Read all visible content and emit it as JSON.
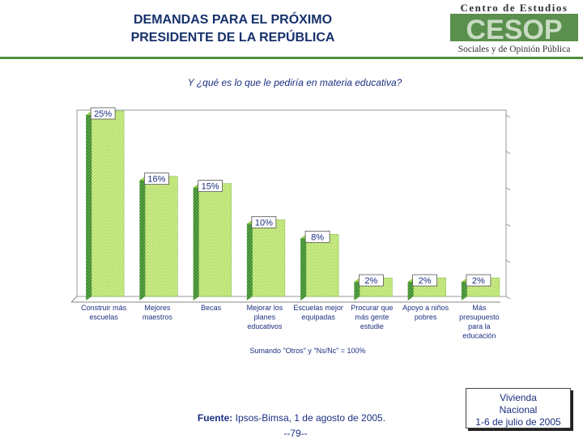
{
  "header": {
    "title_line1": "DEMANDAS PARA EL PRÓXIMO",
    "title_line2": "PRESIDENTE DE LA REPÚBLICA",
    "logo_line1": "Centro de Estudios",
    "logo_word": "CESOP",
    "logo_line2": "Sociales y de Opinión Pública"
  },
  "chart_data": {
    "type": "bar",
    "title": "Y ¿qué es lo que le pediría en materia educativa?",
    "categories": [
      [
        "Construir más",
        "escuelas"
      ],
      [
        "Mejores",
        "maestros"
      ],
      [
        "Becas"
      ],
      [
        "Mejorar los",
        "planes",
        "educativos"
      ],
      [
        "Escuelas mejor",
        "equipadas"
      ],
      [
        "Procurar que",
        "más gente",
        "estudie"
      ],
      [
        "Apoyo a niños",
        "pobres"
      ],
      [
        "Más",
        "presupuesto",
        "para la",
        "educación"
      ]
    ],
    "values": [
      25,
      16,
      15,
      10,
      8,
      2,
      2,
      2
    ],
    "value_labels": [
      "25%",
      "16%",
      "15%",
      "10%",
      "8%",
      "2%",
      "2%",
      "2%"
    ],
    "ylim": [
      0,
      25
    ],
    "xlabel": "",
    "ylabel": "",
    "bar_color": "#b6e06a",
    "bar_side_color": "#3c8a2e"
  },
  "footer": {
    "note": "Sumando \"Otros\" y \"Ns/Nc\" = 100%",
    "source_label": "Fuente:",
    "source_text": "Ipsos-Bimsa, 1 de agosto de 2005.",
    "page_number": "--79--",
    "survey_line1": "Vivienda",
    "survey_line2": "Nacional",
    "survey_line3": "1-6 de julio de 2005"
  }
}
